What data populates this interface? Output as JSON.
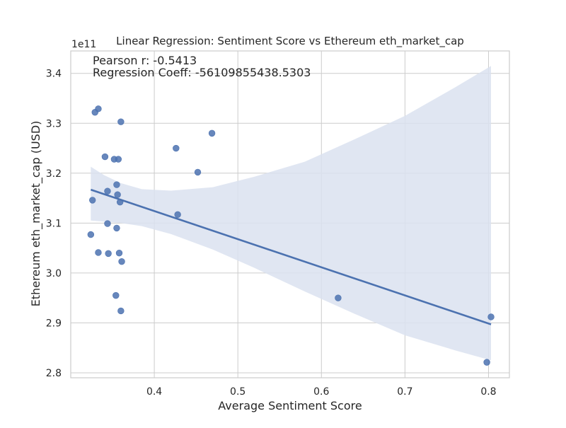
{
  "chart_data": {
    "type": "scatter",
    "title": "Linear Regression: Sentiment Score vs Ethereum eth_market_cap",
    "xlabel": "Average Sentiment Score",
    "ylabel": "Ethereum eth_market_cap (USD)",
    "y_offset_label": "1e11",
    "xlim": [
      0.3,
      0.825
    ],
    "ylim": [
      2.79,
      3.445
    ],
    "y_scale_factor": 100000000000,
    "x_ticks": [
      0.4,
      0.5,
      0.6,
      0.7,
      0.8
    ],
    "x_tick_labels": [
      "0.4",
      "0.5",
      "0.6",
      "0.7",
      "0.8"
    ],
    "y_ticks": [
      2.8,
      2.9,
      3.0,
      3.1,
      3.2,
      3.3,
      3.4
    ],
    "y_tick_labels": [
      "2.8",
      "2.9",
      "3.0",
      "3.1",
      "3.2",
      "3.3",
      "3.4"
    ],
    "grid": true,
    "annotations": [
      "Pearson r: -0.5413",
      "Regression Coeff: -56109855438.5303"
    ],
    "series": [
      {
        "points": [
          {
            "x": 0.329,
            "y": 3.322
          },
          {
            "x": 0.333,
            "y": 3.329
          },
          {
            "x": 0.36,
            "y": 3.303
          },
          {
            "x": 0.469,
            "y": 3.28
          },
          {
            "x": 0.426,
            "y": 3.25
          },
          {
            "x": 0.341,
            "y": 3.233
          },
          {
            "x": 0.352,
            "y": 3.228
          },
          {
            "x": 0.357,
            "y": 3.228
          },
          {
            "x": 0.452,
            "y": 3.202
          },
          {
            "x": 0.355,
            "y": 3.177
          },
          {
            "x": 0.344,
            "y": 3.164
          },
          {
            "x": 0.356,
            "y": 3.157
          },
          {
            "x": 0.326,
            "y": 3.146
          },
          {
            "x": 0.359,
            "y": 3.142
          },
          {
            "x": 0.428,
            "y": 3.117
          },
          {
            "x": 0.344,
            "y": 3.099
          },
          {
            "x": 0.355,
            "y": 3.09
          },
          {
            "x": 0.324,
            "y": 3.077
          },
          {
            "x": 0.333,
            "y": 3.041
          },
          {
            "x": 0.345,
            "y": 3.039
          },
          {
            "x": 0.358,
            "y": 3.04
          },
          {
            "x": 0.361,
            "y": 3.023
          },
          {
            "x": 0.354,
            "y": 2.955
          },
          {
            "x": 0.62,
            "y": 2.95
          },
          {
            "x": 0.36,
            "y": 2.924
          },
          {
            "x": 0.803,
            "y": 2.912
          },
          {
            "x": 0.798,
            "y": 2.821
          }
        ]
      }
    ],
    "regression_line": [
      {
        "x": 0.324,
        "y": 3.167
      },
      {
        "x": 0.803,
        "y": 2.897
      }
    ],
    "confidence_band": [
      {
        "x": 0.324,
        "lo": 3.105,
        "hi": 3.213
      },
      {
        "x": 0.34,
        "lo": 3.103,
        "hi": 3.196
      },
      {
        "x": 0.36,
        "lo": 3.1,
        "hi": 3.18
      },
      {
        "x": 0.385,
        "lo": 3.094,
        "hi": 3.168
      },
      {
        "x": 0.42,
        "lo": 3.078,
        "hi": 3.165
      },
      {
        "x": 0.47,
        "lo": 3.047,
        "hi": 3.172
      },
      {
        "x": 0.52,
        "lo": 3.01,
        "hi": 3.193
      },
      {
        "x": 0.58,
        "lo": 2.963,
        "hi": 3.223
      },
      {
        "x": 0.64,
        "lo": 2.918,
        "hi": 3.268
      },
      {
        "x": 0.7,
        "lo": 2.875,
        "hi": 3.315
      },
      {
        "x": 0.76,
        "lo": 2.845,
        "hi": 3.372
      },
      {
        "x": 0.803,
        "lo": 2.825,
        "hi": 3.415
      }
    ],
    "colors": {
      "points": "#4c72b0",
      "line": "#4c72b0",
      "band": "#dbe2f0",
      "grid": "#cccccc",
      "frame": "#cccccc"
    }
  }
}
